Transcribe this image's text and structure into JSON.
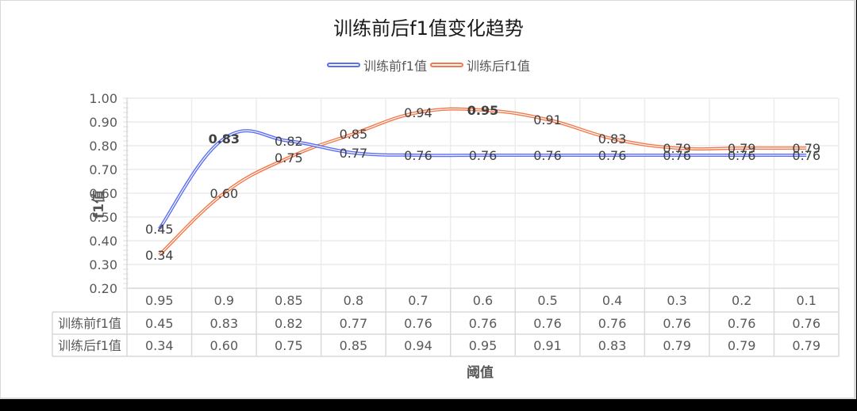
{
  "chart_data": {
    "type": "line",
    "title": "训练前后f1值变化趋势",
    "xlabel": "阈值",
    "ylabel": "f1值",
    "categories": [
      "0.95",
      "0.9",
      "0.85",
      "0.8",
      "0.7",
      "0.6",
      "0.5",
      "0.4",
      "0.3",
      "0.2",
      "0.1"
    ],
    "series": [
      {
        "name": "训练前f1值",
        "color": "#5b6ef5",
        "values": [
          0.45,
          0.83,
          0.82,
          0.77,
          0.76,
          0.76,
          0.76,
          0.76,
          0.76,
          0.76,
          0.76
        ],
        "labels": [
          "0.45",
          "0.83",
          "0.82",
          "0.77",
          "0.76",
          "0.76",
          "0.76",
          "0.76",
          "0.76",
          "0.76",
          "0.76"
        ]
      },
      {
        "name": "训练后f1值",
        "color": "#f4784a",
        "values": [
          0.34,
          0.6,
          0.75,
          0.85,
          0.94,
          0.95,
          0.91,
          0.83,
          0.79,
          0.79,
          0.79
        ],
        "labels": [
          "0.34",
          "0.60",
          "0.75",
          "0.85",
          "0.94",
          "0.95",
          "0.91",
          "0.83",
          "0.79",
          "0.79",
          "0.79"
        ]
      }
    ],
    "yticks": [
      "1.00",
      "0.90",
      "0.80",
      "0.70",
      "0.60",
      "0.50",
      "0.40",
      "0.30",
      "0.20"
    ],
    "ylim": [
      0.2,
      1.0
    ],
    "grid": true,
    "smooth": true,
    "legend_position": "top",
    "data_table": true,
    "bold_labels": {
      "训练前f1值": [
        "0.83"
      ],
      "训练后f1值": [
        "0.95"
      ]
    }
  }
}
